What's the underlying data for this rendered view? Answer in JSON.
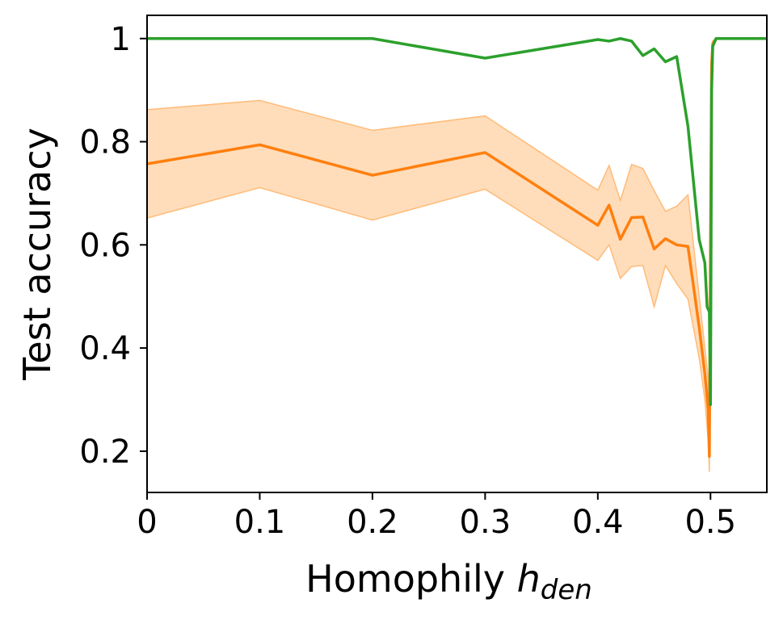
{
  "chart_data": {
    "type": "line",
    "title": "",
    "xlabel": "Homophily",
    "xlabel_var": "h",
    "xlabel_sub": "den",
    "ylabel": "Test accuracy",
    "xlim": [
      0,
      0.55
    ],
    "ylim": [
      0.12,
      1.045
    ],
    "xticks": [
      0,
      0.1,
      0.2,
      0.3,
      0.4,
      0.5
    ],
    "xtick_labels": [
      "0",
      "0.1",
      "0.2",
      "0.3",
      "0.4",
      "0.5"
    ],
    "yticks": [
      0.2,
      0.4,
      0.6,
      0.8,
      1.0
    ],
    "ytick_labels": [
      "0.2",
      "0.4",
      "0.6",
      "0.8",
      "1"
    ],
    "grid": false,
    "series": [
      {
        "name": "orange",
        "color": "#ff7f0e",
        "band_color": "#ffbb78",
        "x": [
          0,
          0.1,
          0.2,
          0.3,
          0.4,
          0.41,
          0.42,
          0.43,
          0.44,
          0.45,
          0.46,
          0.47,
          0.48,
          0.49,
          0.495,
          0.498,
          0.499,
          0.5,
          0.501,
          0.502,
          0.505,
          0.51,
          0.52,
          0.55
        ],
        "y": [
          0.757,
          0.794,
          0.735,
          0.779,
          0.638,
          0.677,
          0.611,
          0.653,
          0.654,
          0.592,
          0.612,
          0.6,
          0.597,
          0.44,
          0.35,
          0.28,
          0.19,
          0.6,
          0.95,
          0.99,
          1.0,
          1.0,
          1.0,
          1.0
        ],
        "lower": [
          0.652,
          0.711,
          0.648,
          0.708,
          0.57,
          0.6,
          0.535,
          0.558,
          0.56,
          0.48,
          0.56,
          0.525,
          0.495,
          0.38,
          0.3,
          0.22,
          0.16,
          0.55,
          0.93,
          0.985,
          0.998,
          1.0,
          1.0,
          1.0
        ],
        "upper": [
          0.862,
          0.88,
          0.822,
          0.85,
          0.706,
          0.754,
          0.686,
          0.756,
          0.748,
          0.705,
          0.665,
          0.675,
          0.697,
          0.5,
          0.4,
          0.34,
          0.22,
          0.65,
          0.97,
          0.995,
          1.0,
          1.0,
          1.0,
          1.0
        ]
      },
      {
        "name": "green",
        "color": "#2ca02c",
        "x": [
          0,
          0.1,
          0.2,
          0.3,
          0.4,
          0.41,
          0.42,
          0.43,
          0.44,
          0.45,
          0.46,
          0.47,
          0.48,
          0.49,
          0.495,
          0.497,
          0.499,
          0.5,
          0.501,
          0.502,
          0.505,
          0.51,
          0.55
        ],
        "y": [
          1.0,
          1.0,
          1.0,
          0.962,
          0.998,
          0.995,
          1.0,
          0.995,
          0.967,
          0.98,
          0.955,
          0.965,
          0.83,
          0.61,
          0.565,
          0.48,
          0.47,
          0.29,
          0.9,
          0.985,
          1.0,
          1.0,
          1.0
        ]
      }
    ]
  }
}
